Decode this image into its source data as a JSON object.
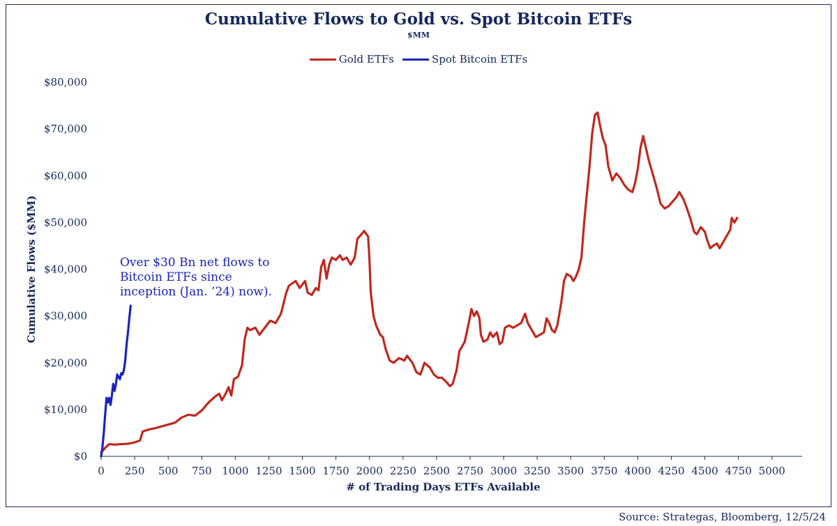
{
  "title": "Cumulative Flows to Gold vs. Spot Bitcoin ETFs",
  "subtitle": "$MM",
  "source": "Source: Strategas, Bloomberg, 12/5/24",
  "annotation": [
    "Over $30 Bn net flows to",
    "Bitcoin ETFs since",
    "inception (Jan. ’24) now)."
  ],
  "colors": {
    "gold": "#c0281d",
    "bitcoin": "#1a23b8",
    "text": "#14285c"
  },
  "chart_data": {
    "type": "line",
    "xlabel": "# of Trading Days ETFs Available",
    "ylabel": "Cumulative Flows ($MM)",
    "xlim": [
      0,
      5100
    ],
    "ylim": [
      0,
      80000
    ],
    "x_ticks": [
      0,
      250,
      500,
      750,
      1000,
      1250,
      1500,
      1750,
      2000,
      2250,
      2500,
      2750,
      3000,
      3250,
      3500,
      3750,
      4000,
      4250,
      4500,
      4750,
      5000
    ],
    "x_tick_labels": [
      "0",
      "250",
      "500",
      "750",
      "1000",
      "1250",
      "1500",
      "1750",
      "2000",
      "2250",
      "2500",
      "2750",
      "3000",
      "3250",
      "3500",
      "3750",
      "4000",
      "4250",
      "4500",
      "4750",
      "5000"
    ],
    "y_ticks": [
      0,
      10000,
      20000,
      30000,
      40000,
      50000,
      60000,
      70000,
      80000
    ],
    "y_tick_labels": [
      "$0",
      "$10,000",
      "$20,000",
      "$30,000",
      "$40,000",
      "$50,000",
      "$60,000",
      "$70,000",
      "$80,000"
    ],
    "legend_position": "top-center",
    "grid": false,
    "series": [
      {
        "name": "Gold ETFs",
        "color": "#c0281d",
        "points": [
          [
            0,
            800
          ],
          [
            30,
            1800
          ],
          [
            60,
            2600
          ],
          [
            100,
            2500
          ],
          [
            150,
            2600
          ],
          [
            200,
            2700
          ],
          [
            250,
            3000
          ],
          [
            290,
            3400
          ],
          [
            310,
            5300
          ],
          [
            350,
            5700
          ],
          [
            400,
            6000
          ],
          [
            450,
            6400
          ],
          [
            500,
            6800
          ],
          [
            550,
            7200
          ],
          [
            600,
            8300
          ],
          [
            650,
            8900
          ],
          [
            700,
            8700
          ],
          [
            750,
            9800
          ],
          [
            800,
            11500
          ],
          [
            850,
            12800
          ],
          [
            880,
            13400
          ],
          [
            900,
            12000
          ],
          [
            930,
            13500
          ],
          [
            950,
            14800
          ],
          [
            970,
            13000
          ],
          [
            990,
            16500
          ],
          [
            1020,
            17000
          ],
          [
            1050,
            19500
          ],
          [
            1070,
            25000
          ],
          [
            1090,
            27500
          ],
          [
            1110,
            27000
          ],
          [
            1150,
            27500
          ],
          [
            1180,
            26000
          ],
          [
            1220,
            27500
          ],
          [
            1260,
            29000
          ],
          [
            1300,
            28500
          ],
          [
            1340,
            30500
          ],
          [
            1380,
            35000
          ],
          [
            1400,
            36500
          ],
          [
            1450,
            37500
          ],
          [
            1480,
            36000
          ],
          [
            1520,
            37500
          ],
          [
            1540,
            35000
          ],
          [
            1570,
            34500
          ],
          [
            1600,
            36000
          ],
          [
            1620,
            35500
          ],
          [
            1640,
            40500
          ],
          [
            1660,
            42000
          ],
          [
            1680,
            38000
          ],
          [
            1700,
            41000
          ],
          [
            1720,
            42500
          ],
          [
            1750,
            42000
          ],
          [
            1780,
            43000
          ],
          [
            1800,
            42000
          ],
          [
            1830,
            42500
          ],
          [
            1860,
            41000
          ],
          [
            1890,
            42500
          ],
          [
            1910,
            46500
          ],
          [
            1940,
            47500
          ],
          [
            1960,
            48200
          ],
          [
            1990,
            47000
          ],
          [
            2000,
            42000
          ],
          [
            2010,
            35000
          ],
          [
            2030,
            30000
          ],
          [
            2050,
            28000
          ],
          [
            2080,
            26000
          ],
          [
            2100,
            25500
          ],
          [
            2120,
            23000
          ],
          [
            2150,
            20500
          ],
          [
            2180,
            20000
          ],
          [
            2220,
            21000
          ],
          [
            2260,
            20500
          ],
          [
            2280,
            21500
          ],
          [
            2320,
            20000
          ],
          [
            2350,
            18000
          ],
          [
            2380,
            17500
          ],
          [
            2410,
            20000
          ],
          [
            2450,
            19000
          ],
          [
            2480,
            17500
          ],
          [
            2510,
            16800
          ],
          [
            2540,
            16800
          ],
          [
            2570,
            16000
          ],
          [
            2600,
            15000
          ],
          [
            2620,
            15500
          ],
          [
            2650,
            18500
          ],
          [
            2670,
            22500
          ],
          [
            2690,
            23500
          ],
          [
            2710,
            24500
          ],
          [
            2740,
            28500
          ],
          [
            2760,
            31500
          ],
          [
            2780,
            30000
          ],
          [
            2800,
            31000
          ],
          [
            2820,
            29500
          ],
          [
            2830,
            26000
          ],
          [
            2850,
            24500
          ],
          [
            2880,
            25000
          ],
          [
            2900,
            26500
          ],
          [
            2920,
            25500
          ],
          [
            2950,
            26500
          ],
          [
            2970,
            24000
          ],
          [
            2990,
            24500
          ],
          [
            3010,
            27500
          ],
          [
            3040,
            28000
          ],
          [
            3070,
            27500
          ],
          [
            3100,
            28000
          ],
          [
            3130,
            28500
          ],
          [
            3160,
            30500
          ],
          [
            3180,
            28500
          ],
          [
            3210,
            27000
          ],
          [
            3240,
            25500
          ],
          [
            3270,
            26000
          ],
          [
            3300,
            26500
          ],
          [
            3320,
            29500
          ],
          [
            3340,
            28500
          ],
          [
            3360,
            27000
          ],
          [
            3380,
            26500
          ],
          [
            3400,
            28000
          ],
          [
            3430,
            33000
          ],
          [
            3450,
            37500
          ],
          [
            3470,
            39000
          ],
          [
            3500,
            38500
          ],
          [
            3520,
            37500
          ],
          [
            3540,
            38500
          ],
          [
            3560,
            40000
          ],
          [
            3580,
            42500
          ],
          [
            3600,
            50000
          ],
          [
            3620,
            56000
          ],
          [
            3640,
            62000
          ],
          [
            3660,
            69000
          ],
          [
            3680,
            73000
          ],
          [
            3700,
            73500
          ],
          [
            3720,
            70500
          ],
          [
            3740,
            68000
          ],
          [
            3760,
            66500
          ],
          [
            3780,
            62000
          ],
          [
            3810,
            59000
          ],
          [
            3840,
            60500
          ],
          [
            3870,
            59500
          ],
          [
            3900,
            58000
          ],
          [
            3930,
            57000
          ],
          [
            3960,
            56500
          ],
          [
            3980,
            58500
          ],
          [
            4000,
            61500
          ],
          [
            4020,
            66000
          ],
          [
            4040,
            68500
          ],
          [
            4060,
            66000
          ],
          [
            4080,
            63500
          ],
          [
            4110,
            60500
          ],
          [
            4140,
            57500
          ],
          [
            4170,
            54000
          ],
          [
            4200,
            53000
          ],
          [
            4230,
            53500
          ],
          [
            4260,
            54500
          ],
          [
            4290,
            55500
          ],
          [
            4310,
            56500
          ],
          [
            4340,
            55000
          ],
          [
            4360,
            53500
          ],
          [
            4390,
            51000
          ],
          [
            4420,
            48000
          ],
          [
            4440,
            47500
          ],
          [
            4470,
            49000
          ],
          [
            4500,
            48000
          ],
          [
            4520,
            46000
          ],
          [
            4540,
            44500
          ],
          [
            4560,
            45000
          ],
          [
            4590,
            45500
          ],
          [
            4610,
            44500
          ],
          [
            4630,
            45500
          ],
          [
            4650,
            46500
          ],
          [
            4670,
            47500
          ],
          [
            4690,
            48500
          ],
          [
            4700,
            51000
          ],
          [
            4720,
            50000
          ],
          [
            4740,
            51000
          ]
        ]
      },
      {
        "name": "Spot Bitcoin ETFs",
        "color": "#1a23b8",
        "points": [
          [
            0,
            0
          ],
          [
            10,
            2000
          ],
          [
            20,
            5000
          ],
          [
            30,
            9000
          ],
          [
            40,
            12500
          ],
          [
            50,
            11500
          ],
          [
            60,
            12500
          ],
          [
            70,
            11000
          ],
          [
            80,
            13000
          ],
          [
            90,
            15500
          ],
          [
            100,
            14000
          ],
          [
            110,
            15500
          ],
          [
            120,
            17500
          ],
          [
            130,
            17000
          ],
          [
            140,
            16500
          ],
          [
            150,
            17800
          ],
          [
            160,
            17500
          ],
          [
            170,
            18500
          ],
          [
            180,
            20500
          ],
          [
            190,
            24000
          ],
          [
            200,
            26500
          ],
          [
            210,
            29500
          ],
          [
            220,
            32200
          ]
        ]
      }
    ]
  }
}
